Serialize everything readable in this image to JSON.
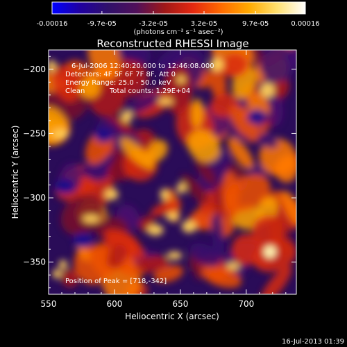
{
  "colorbar": {
    "tick_labels": [
      "-0.00016",
      "-9.7e-05",
      "-3.2e-05",
      "3.2e-05",
      "9.7e-05",
      "0.00016"
    ],
    "tick_values": [
      -0.00016,
      -9.7e-05,
      -3.2e-05,
      3.2e-05,
      9.7e-05,
      0.00016
    ],
    "range": [
      -0.00016,
      0.00016
    ],
    "units": "(photons cm⁻² s⁻¹ asec⁻²)",
    "color_stops": [
      "#0000ff",
      "#2000a0",
      "#30106a",
      "#50105a",
      "#a01818",
      "#e42810",
      "#ff6a00",
      "#ffaa00",
      "#ffe070",
      "#ffffff"
    ]
  },
  "annotations": {
    "time_range": "6-Jul-2006 12:40:20.000 to 12:46:08.000",
    "detectors": "Detectors: 4F 5F 6F 7F 8F, Att 0",
    "energy_range": "Energy Range: 25.0 - 50.0 keV",
    "method_label": "Clean",
    "total_counts": "Total counts: 1.29E+04",
    "peak_position": "Position of Peak = [718,-342]"
  },
  "footer": {
    "timestamp": "16-Jul-2013 01:39"
  },
  "chart_data": {
    "type": "heatmap",
    "title": "Reconstructed RHESSI Image",
    "xlabel": "Heliocentric X (arcsec)",
    "ylabel": "Heliocentric Y (arcsec)",
    "xlim": [
      550,
      738
    ],
    "ylim": [
      -375,
      -185
    ],
    "x_ticks": [
      550,
      600,
      650,
      700
    ],
    "y_ticks": [
      -200,
      -250,
      -300,
      -350
    ],
    "peak": {
      "x": 718,
      "y": -342
    },
    "z_range": [
      -0.00016,
      0.00016
    ],
    "grid": false
  }
}
